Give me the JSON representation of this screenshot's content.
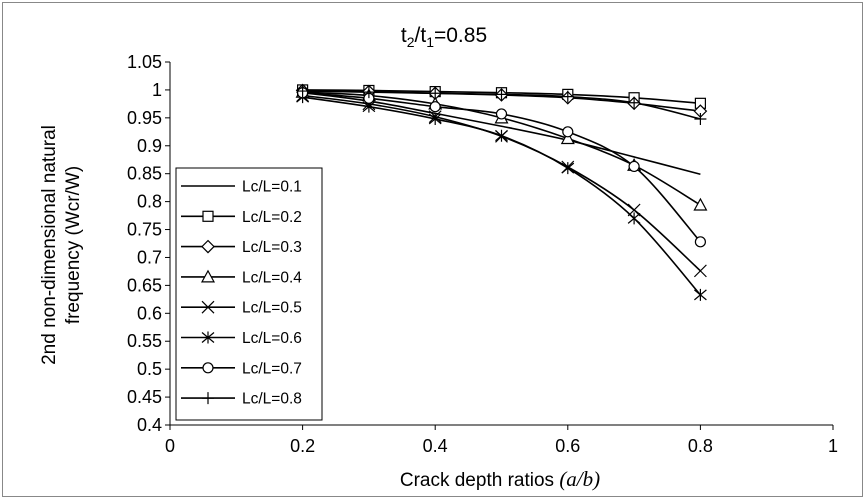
{
  "chart_data": {
    "type": "line",
    "title": {
      "base": "t",
      "sub1": "2",
      "mid": "/t",
      "sub2": "1",
      "tail": "=0.85"
    },
    "xlabel": {
      "text": "Crack depth ratios ",
      "math": "(a/b)"
    },
    "ylabel_lines": [
      "2nd non-dimensional natural",
      "frequency (Wcr/W)"
    ],
    "xlim": [
      0,
      1
    ],
    "ylim": [
      0.4,
      1.05
    ],
    "x_ticks": [
      "0",
      "0.2",
      "0.4",
      "0.6",
      "0.8",
      "1"
    ],
    "y_ticks": [
      "0.4",
      "0.45",
      "0.5",
      "0.55",
      "0.6",
      "0.65",
      "0.7",
      "0.75",
      "0.8",
      "0.85",
      "0.9",
      "0.95",
      "1",
      "1.05"
    ],
    "grid": false,
    "legend_position": "left",
    "x": [
      0.2,
      0.3,
      0.4,
      0.5,
      0.6,
      0.7,
      0.8
    ],
    "series": [
      {
        "name": "Lc/L=0.1",
        "marker": "none",
        "values": [
          0.995,
          0.98,
          0.958,
          0.935,
          0.91,
          0.88,
          0.849
        ]
      },
      {
        "name": "Lc/L=0.2",
        "marker": "square",
        "values": [
          1.0,
          0.999,
          0.997,
          0.995,
          0.992,
          0.986,
          0.976
        ]
      },
      {
        "name": "Lc/L=0.3",
        "marker": "diamond",
        "values": [
          0.999,
          0.997,
          0.994,
          0.991,
          0.986,
          0.976,
          0.962
        ]
      },
      {
        "name": "Lc/L=0.4",
        "marker": "triangle",
        "values": [
          0.996,
          0.99,
          0.975,
          0.95,
          0.913,
          0.865,
          0.794
        ]
      },
      {
        "name": "Lc/L=0.5",
        "marker": "x",
        "values": [
          0.99,
          0.975,
          0.952,
          0.917,
          0.862,
          0.785,
          0.676
        ]
      },
      {
        "name": "Lc/L=0.6",
        "marker": "star",
        "values": [
          0.987,
          0.97,
          0.948,
          0.918,
          0.86,
          0.77,
          0.633
        ]
      },
      {
        "name": "Lc/L=0.7",
        "marker": "circle",
        "values": [
          0.995,
          0.985,
          0.97,
          0.957,
          0.925,
          0.863,
          0.728
        ]
      },
      {
        "name": "Lc/L=0.8",
        "marker": "plus",
        "values": [
          0.998,
          0.996,
          0.994,
          0.992,
          0.988,
          0.977,
          0.948
        ]
      }
    ]
  }
}
